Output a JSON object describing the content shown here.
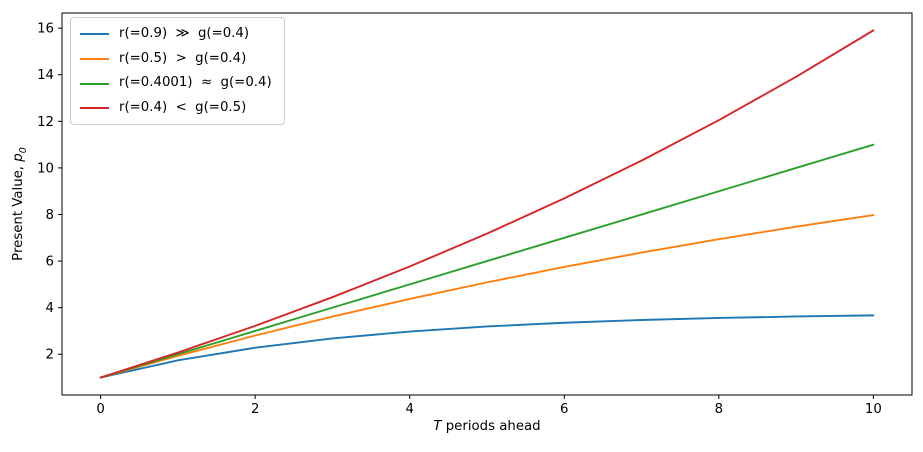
{
  "figure": {
    "background": "#ffffff"
  },
  "axes": {
    "xlabel": {
      "math": "T",
      "rest": " periods ahead"
    },
    "ylabel": {
      "prefix": "Present Value, ",
      "math": "p",
      "sub": "0"
    }
  },
  "chart_data": {
    "type": "line",
    "title": "",
    "xlabel": "T periods ahead",
    "ylabel": "Present Value, p_0",
    "xlim": [
      -0.5,
      10.5
    ],
    "ylim": [
      0.25,
      16.65
    ],
    "x_ticks": [
      0,
      2,
      4,
      6,
      8,
      10
    ],
    "y_ticks": [
      2,
      4,
      6,
      8,
      10,
      12,
      14,
      16
    ],
    "grid": false,
    "legend_position": "upper left",
    "x": [
      0,
      1,
      2,
      3,
      4,
      5,
      6,
      7,
      8,
      9,
      10
    ],
    "series": [
      {
        "name": "r(=0.9)  ≫  g(=0.4)",
        "color": "#1f77b4",
        "r": 0.9,
        "g": 0.4,
        "values": [
          1.0,
          1.737,
          2.28,
          2.68,
          2.975,
          3.192,
          3.352,
          3.47,
          3.557,
          3.621,
          3.668
        ]
      },
      {
        "name": "r(=0.5)  >  g(=0.4)",
        "color": "#ff7f0e",
        "r": 0.5,
        "g": 0.4,
        "values": [
          1.0,
          1.933,
          2.804,
          3.617,
          4.376,
          5.085,
          5.746,
          6.363,
          6.938,
          7.476,
          7.977
        ]
      },
      {
        "name": "r(=0.4001)  ≈  g(=0.4)",
        "color": "#2ca02c",
        "r": 0.4001,
        "g": 0.4,
        "values": [
          1.0,
          2.0,
          3.0,
          4.0,
          4.999,
          5.999,
          6.999,
          7.998,
          8.997,
          9.997,
          10.996
        ]
      },
      {
        "name": "r(=0.4)  <  g(=0.5)",
        "color": "#d62728",
        "r": 0.4,
        "g": 0.5,
        "values": [
          1.0,
          2.071,
          3.219,
          4.449,
          5.767,
          7.179,
          8.692,
          10.313,
          12.049,
          13.91,
          15.904
        ]
      }
    ]
  }
}
